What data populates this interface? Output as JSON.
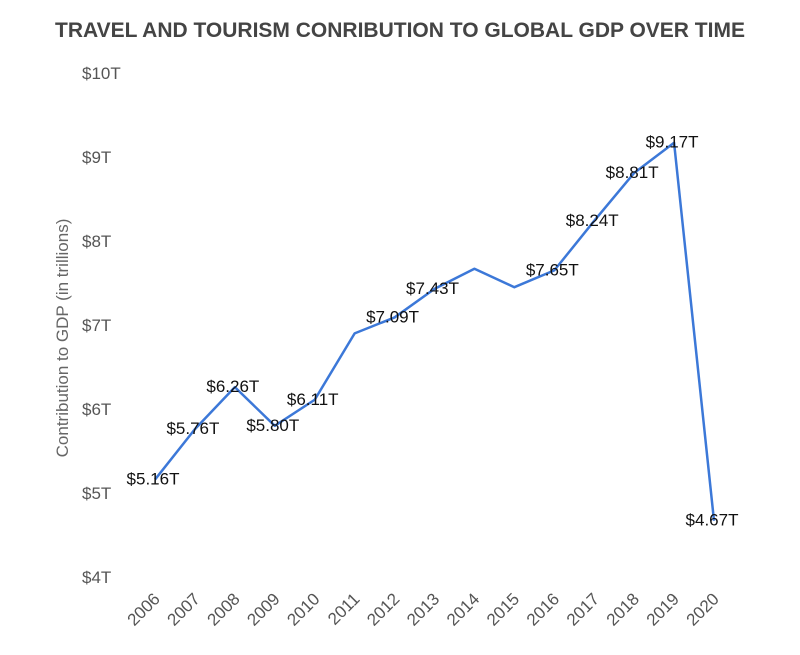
{
  "chart_data": {
    "type": "line",
    "title": "TRAVEL AND TOURISM CONRIBUTION  TO GLOBAL GDP OVER TIME",
    "xlabel": "",
    "ylabel": "Contribution to GDP (in trillions)",
    "ylim": [
      4,
      10
    ],
    "y_ticks": [
      "$4T",
      "$5T",
      "$6T",
      "$7T",
      "$8T",
      "$9T",
      "$10T"
    ],
    "grid": false,
    "legend": "none",
    "line_color": "#3c78d8",
    "categories": [
      "2006",
      "2007",
      "2008",
      "2009",
      "2010",
      "2011",
      "2012",
      "2013",
      "2014",
      "2015",
      "2016",
      "2017",
      "2018",
      "2019",
      "2020"
    ],
    "series": [
      {
        "name": "Contribution to GDP",
        "values": [
          5.16,
          5.76,
          6.26,
          5.8,
          6.11,
          6.9,
          7.09,
          7.43,
          7.67,
          7.45,
          7.65,
          8.24,
          8.81,
          9.17,
          4.67
        ],
        "labels": [
          "$5.16T",
          "$5.76T",
          "$6.26T",
          "$5.80T",
          "$6.11T",
          null,
          "$7.09T",
          "$7.43T",
          null,
          null,
          "$7.65T",
          "$8.24T",
          "$8.81T",
          "$9.17T",
          "$4.67T"
        ]
      }
    ]
  }
}
